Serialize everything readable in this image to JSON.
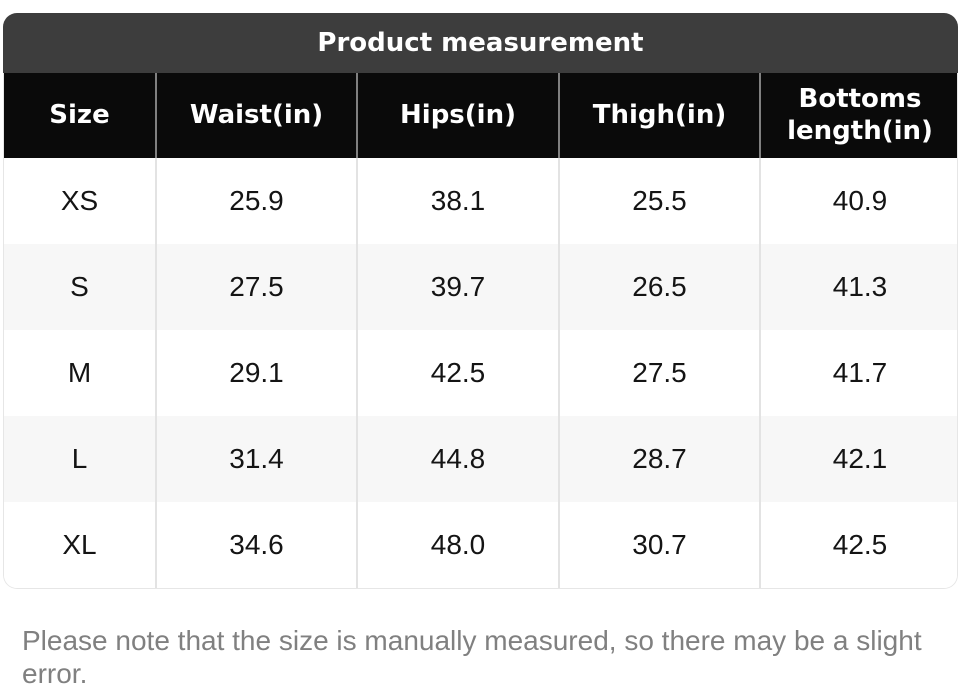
{
  "title": "Product measurement",
  "table": {
    "columns": [
      "Size",
      "Waist(in)",
      "Hips(in)",
      "Thigh(in)",
      "Bottoms length(in)"
    ],
    "rows": [
      [
        "XS",
        "25.9",
        "38.1",
        "25.5",
        "40.9"
      ],
      [
        "S",
        "27.5",
        "39.7",
        "26.5",
        "41.3"
      ],
      [
        "M",
        "29.1",
        "42.5",
        "27.5",
        "41.7"
      ],
      [
        "L",
        "31.4",
        "44.8",
        "28.7",
        "42.1"
      ],
      [
        "XL",
        "34.6",
        "48.0",
        "30.7",
        "42.5"
      ]
    ]
  },
  "note": "Please note that the size is manually measured, so there may be a slight error.",
  "colors": {
    "title_bar_bg": "#3d3d3d",
    "header_bg": "#0a0a0a",
    "header_divider": "#808080",
    "body_divider": "#e3e3e3",
    "alt_row_bg": "#f7f7f7",
    "body_text": "#141414",
    "note_text": "#808080",
    "outer_border": "#e6e6e6"
  }
}
